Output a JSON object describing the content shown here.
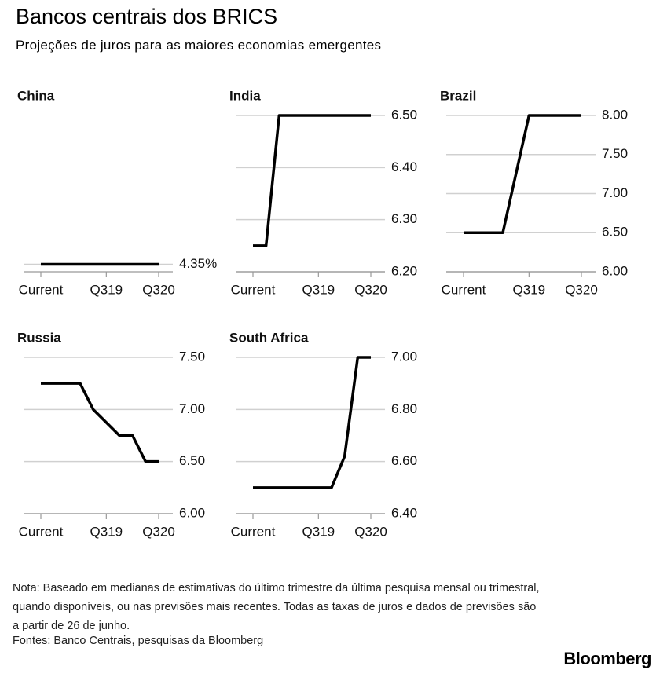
{
  "title": "Bancos centrais dos BRICS",
  "subtitle": "Projeções de juros para as maiores economias emergentes",
  "note": "Nota: Baseado em medianas de estimativas do último trimestre da última pesquisa mensal ou trimestral, quando disponíveis, ou nas previsões mais recentes. Todas as taxas de juros e dados de previsões são a partir de 26 de junho.",
  "source": "Fontes: Banco Centrais, pesquisas da Bloomberg",
  "logo": "Bloomberg",
  "chart_data": [
    {
      "type": "line",
      "title": "China",
      "color": "#000000",
      "grid": true,
      "x": [
        0,
        9
      ],
      "values": [
        4.35,
        4.35
      ],
      "xlim": [
        0,
        9
      ],
      "xticks": [
        {
          "value": 0,
          "label": "Current"
        },
        {
          "value": 5,
          "label": "Q319"
        },
        {
          "value": 9,
          "label": "Q320"
        }
      ],
      "ylim": [
        4.34,
        4.55
      ],
      "yticks": [
        {
          "value": 4.35,
          "label": "4.35%"
        }
      ]
    },
    {
      "type": "line",
      "title": "India",
      "color": "#000000",
      "grid": true,
      "x": [
        0,
        1,
        2,
        9
      ],
      "values": [
        6.25,
        6.25,
        6.5,
        6.5
      ],
      "xlim": [
        0,
        9
      ],
      "xticks": [
        {
          "value": 0,
          "label": "Current"
        },
        {
          "value": 5,
          "label": "Q319"
        },
        {
          "value": 9,
          "label": "Q320"
        }
      ],
      "ylim": [
        6.2,
        6.5
      ],
      "yticks": [
        {
          "value": 6.2,
          "label": "6.20"
        },
        {
          "value": 6.3,
          "label": "6.30"
        },
        {
          "value": 6.4,
          "label": "6.40"
        },
        {
          "value": 6.5,
          "label": "6.50"
        }
      ]
    },
    {
      "type": "line",
      "title": "Brazil",
      "color": "#000000",
      "grid": true,
      "x": [
        0,
        3,
        5,
        9
      ],
      "values": [
        6.5,
        6.5,
        8,
        8
      ],
      "xlim": [
        0,
        9
      ],
      "xticks": [
        {
          "value": 0,
          "label": "Current"
        },
        {
          "value": 5,
          "label": "Q319"
        },
        {
          "value": 9,
          "label": "Q320"
        }
      ],
      "ylim": [
        6,
        8
      ],
      "yticks": [
        {
          "value": 6,
          "label": "6.00"
        },
        {
          "value": 6.5,
          "label": "6.50"
        },
        {
          "value": 7,
          "label": "7.00"
        },
        {
          "value": 7.5,
          "label": "7.50"
        },
        {
          "value": 8,
          "label": "8.00"
        }
      ]
    },
    {
      "type": "line",
      "title": "Russia",
      "color": "#000000",
      "grid": true,
      "x": [
        0,
        3,
        4,
        6,
        7,
        8,
        9
      ],
      "values": [
        7.25,
        7.25,
        7,
        6.75,
        6.75,
        6.5,
        6.5
      ],
      "xlim": [
        0,
        9
      ],
      "xticks": [
        {
          "value": 0,
          "label": "Current"
        },
        {
          "value": 5,
          "label": "Q319"
        },
        {
          "value": 9,
          "label": "Q320"
        }
      ],
      "ylim": [
        6,
        7.5
      ],
      "yticks": [
        {
          "value": 6,
          "label": "6.00"
        },
        {
          "value": 6.5,
          "label": "6.50"
        },
        {
          "value": 7,
          "label": "7.00"
        },
        {
          "value": 7.5,
          "label": "7.50"
        }
      ]
    },
    {
      "type": "line",
      "title": "South Africa",
      "color": "#000000",
      "grid": true,
      "x": [
        0,
        6,
        7,
        8,
        9
      ],
      "values": [
        6.5,
        6.5,
        6.62,
        7,
        7
      ],
      "xlim": [
        0,
        9
      ],
      "xticks": [
        {
          "value": 0,
          "label": "Current"
        },
        {
          "value": 5,
          "label": "Q319"
        },
        {
          "value": 9,
          "label": "Q320"
        }
      ],
      "ylim": [
        6.4,
        7
      ],
      "yticks": [
        {
          "value": 6.4,
          "label": "6.40"
        },
        {
          "value": 6.6,
          "label": "6.60"
        },
        {
          "value": 6.8,
          "label": "6.80"
        },
        {
          "value": 7,
          "label": "7.00"
        }
      ]
    }
  ]
}
